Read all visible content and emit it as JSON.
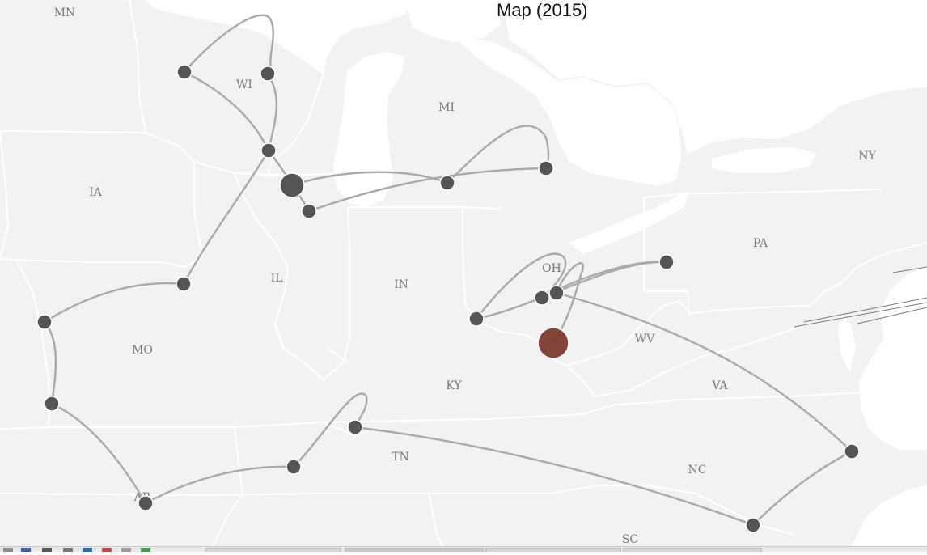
{
  "title": "Map (2015)",
  "colors": {
    "land": "#f2f2f2",
    "water": "#ffffff",
    "border": "#ffffff",
    "route": "#a9a9a9",
    "stop": "#555555",
    "highlight": "#7b3a2f"
  },
  "state_labels": [
    {
      "name": "MN"
    },
    {
      "name": "WI"
    },
    {
      "name": "MI"
    },
    {
      "name": "NY"
    },
    {
      "name": "IA"
    },
    {
      "name": "PA"
    },
    {
      "name": "IL"
    },
    {
      "name": "IN"
    },
    {
      "name": "OH"
    },
    {
      "name": "WV"
    },
    {
      "name": "MO"
    },
    {
      "name": "KY"
    },
    {
      "name": "VA"
    },
    {
      "name": "TN"
    },
    {
      "name": "NC"
    },
    {
      "name": "AR"
    },
    {
      "name": "SC"
    }
  ],
  "stops": [
    {
      "id": "wi-west",
      "kind": "normal"
    },
    {
      "id": "wi-north",
      "kind": "normal"
    },
    {
      "id": "wi-south",
      "kind": "normal"
    },
    {
      "id": "milwaukee",
      "kind": "large"
    },
    {
      "id": "chicago-south",
      "kind": "normal"
    },
    {
      "id": "mi-west",
      "kind": "normal"
    },
    {
      "id": "mi-east",
      "kind": "normal"
    },
    {
      "id": "il-west",
      "kind": "normal"
    },
    {
      "id": "mo-ne",
      "kind": "normal"
    },
    {
      "id": "mo-se",
      "kind": "normal"
    },
    {
      "id": "ar-ne",
      "kind": "normal"
    },
    {
      "id": "tn-west",
      "kind": "normal"
    },
    {
      "id": "ky-south",
      "kind": "normal"
    },
    {
      "id": "oh-sw",
      "kind": "normal"
    },
    {
      "id": "oh-center-1",
      "kind": "normal"
    },
    {
      "id": "oh-center-2",
      "kind": "normal"
    },
    {
      "id": "pa-west",
      "kind": "normal"
    },
    {
      "id": "wv-west",
      "kind": "highlight"
    },
    {
      "id": "va-coast",
      "kind": "normal"
    },
    {
      "id": "nc-east",
      "kind": "normal"
    }
  ]
}
